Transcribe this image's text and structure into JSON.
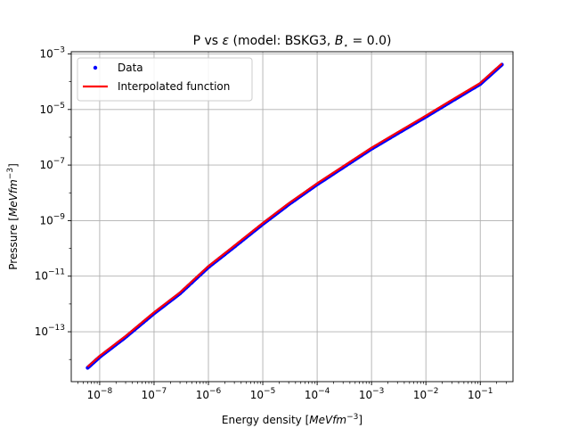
{
  "chart_data": {
    "type": "line",
    "title": {
      "prefix": "P vs ",
      "symbol": "ε",
      "middle": " (model: BSKG3, ",
      "b_symbol": "B",
      "b_subscript": "⋆",
      "suffix": " = 0.0)"
    },
    "xlabel": {
      "text": "Energy density ",
      "unit_open": "[",
      "unit": "MeVfm",
      "unit_exp": "−3",
      "unit_close": "]"
    },
    "ylabel": {
      "text": "Pressure ",
      "unit_open": "[",
      "unit": "MeVfm",
      "unit_exp": "−3",
      "unit_close": "]"
    },
    "x_scale": "log",
    "y_scale": "log",
    "xlim": [
      3e-09,
      0.4
    ],
    "ylim": [
      1.6e-15,
      0.0012
    ],
    "grid": true,
    "legend_position": "upper-left",
    "x_ticks": [
      {
        "value": 1e-08,
        "base": "10",
        "exp": "−8"
      },
      {
        "value": 1e-07,
        "base": "10",
        "exp": "−7"
      },
      {
        "value": 1e-06,
        "base": "10",
        "exp": "−6"
      },
      {
        "value": 1e-05,
        "base": "10",
        "exp": "−5"
      },
      {
        "value": 0.0001,
        "base": "10",
        "exp": "−4"
      },
      {
        "value": 0.001,
        "base": "10",
        "exp": "−3"
      },
      {
        "value": 0.01,
        "base": "10",
        "exp": "−2"
      },
      {
        "value": 0.1,
        "base": "10",
        "exp": "−1"
      }
    ],
    "y_ticks": [
      {
        "value": 1e-13,
        "base": "10",
        "exp": "−13"
      },
      {
        "value": 1e-11,
        "base": "10",
        "exp": "−11"
      },
      {
        "value": 1e-09,
        "base": "10",
        "exp": "−9"
      },
      {
        "value": 1e-07,
        "base": "10",
        "exp": "−7"
      },
      {
        "value": 1e-05,
        "base": "10",
        "exp": "−5"
      },
      {
        "value": 0.001,
        "base": "10",
        "exp": "−3"
      }
    ],
    "series": [
      {
        "name": "Data",
        "style": "points",
        "color": "#0000ff",
        "x": [
          6e-09,
          1e-08,
          3e-08,
          1e-07,
          3e-07,
          1e-06,
          3e-06,
          1e-05,
          3e-05,
          0.0001,
          0.0003,
          0.001,
          0.003,
          0.01,
          0.03,
          0.1,
          0.25
        ],
        "y": [
          5.5e-15,
          1.35e-14,
          7e-14,
          5e-13,
          2.6e-12,
          2.3e-11,
          1.25e-10,
          8.2e-10,
          4.2e-09,
          2.2e-08,
          9e-08,
          4.2e-07,
          1.5e-06,
          6e-06,
          2.2e-05,
          9e-05,
          0.00045
        ]
      },
      {
        "name": "Interpolated function",
        "style": "line",
        "color": "#ff0000",
        "x": [
          6e-09,
          1e-08,
          3e-08,
          1e-07,
          3e-07,
          1e-06,
          3e-06,
          1e-05,
          3e-05,
          0.0001,
          0.0003,
          0.001,
          0.003,
          0.01,
          0.03,
          0.1,
          0.25
        ],
        "y": [
          5.5e-15,
          1.35e-14,
          7e-14,
          5e-13,
          2.6e-12,
          2.3e-11,
          1.25e-10,
          8.2e-10,
          4.2e-09,
          2.2e-08,
          9e-08,
          4.2e-07,
          1.5e-06,
          6e-06,
          2.2e-05,
          9e-05,
          0.00045
        ]
      }
    ]
  }
}
